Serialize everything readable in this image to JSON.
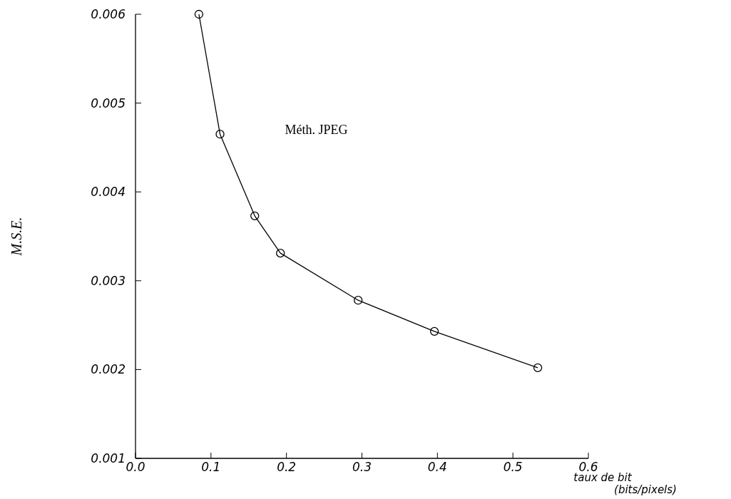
{
  "chart_data": {
    "type": "line",
    "xlabel": "taux de bit (bits/pixels)",
    "ylabel": "M.S.E.",
    "x": [
      0.084,
      0.112,
      0.158,
      0.192,
      0.295,
      0.396,
      0.533
    ],
    "series": [
      {
        "color": "#000000",
        "values": [
          0.006,
          0.00465,
          0.00373,
          0.00331,
          0.00278,
          0.00243,
          0.00202
        ]
      }
    ],
    "annotations": [
      "Méth. JPEG"
    ],
    "xlim": [
      0,
      0.6
    ],
    "xticks": [
      {
        "value": 0,
        "label": "0.0"
      },
      0.1,
      0.2,
      0.3,
      0.4,
      0.5,
      0.6
    ],
    "ylim": [
      0.001,
      0.006
    ],
    "yticks": [
      0.001,
      0.002,
      0.003,
      0.004,
      0.005,
      0.006
    ],
    "grid": false,
    "marker": "circle",
    "line_style": "solid"
  }
}
